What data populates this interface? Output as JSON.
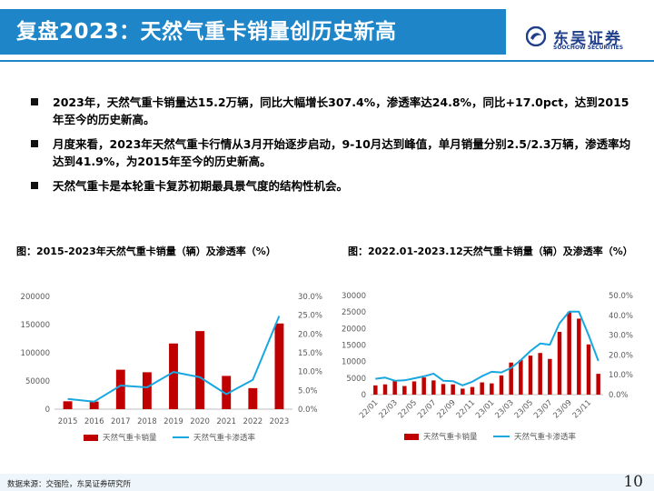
{
  "header": {
    "title": "复盘2023：天然气重卡销量创历史新高"
  },
  "logo": {
    "name_cn": "东吴证券",
    "name_en": "SOOCHOW SECURITIES"
  },
  "bullets": [
    "2023年，天然气重卡销量达15.2万辆，同比大幅增长307.4%，渗透率达24.8%，同比+17.0pct，达到2015年至今的历史新高。",
    "月度来看，2023年天然气重卡行情从3月开始逐步启动，9-10月达到峰值，单月销量分别2.5/2.3万辆，渗透率均达到41.9%，为2015年至今的历史新高。",
    "天然气重卡是本轮重卡复苏初期最具景气度的结构性机会。"
  ],
  "footer": {
    "source": "数据来源：交强险，东吴证券研究所",
    "page": "10"
  },
  "colors": {
    "accent": "#1e86c8",
    "bar": "#c00000",
    "line": "#19a7e0"
  },
  "chart_data": [
    {
      "type": "bar",
      "title": "图：2015-2023年天然气重卡销量（辆）及渗透率（%）",
      "categories": [
        "2015",
        "2016",
        "2017",
        "2018",
        "2019",
        "2020",
        "2021",
        "2022",
        "2023"
      ],
      "series": [
        {
          "name": "天然气重卡销量",
          "type": "bar",
          "axis": "left",
          "values": [
            14000,
            13500,
            70000,
            65500,
            116500,
            138500,
            59000,
            37300,
            152000
          ]
        },
        {
          "name": "天然气重卡渗透率",
          "type": "line",
          "axis": "right",
          "values": [
            2.7,
            2.0,
            6.3,
            5.8,
            9.9,
            8.5,
            4.0,
            7.8,
            24.8
          ]
        }
      ],
      "y_left": {
        "min": 0,
        "max": 200000,
        "ticks": [
          "0",
          "50000",
          "100000",
          "150000",
          "200000"
        ]
      },
      "y_right": {
        "min": 0,
        "max": 30,
        "ticks": [
          "0.0%",
          "5.0%",
          "10.0%",
          "15.0%",
          "20.0%",
          "25.0%",
          "30.0%"
        ]
      }
    },
    {
      "type": "bar",
      "title": "图：2022.01-2023.12天然气重卡销量（辆）及渗透率（%）",
      "categories": [
        "22/01",
        "22/02",
        "22/03",
        "22/04",
        "22/05",
        "22/06",
        "22/07",
        "22/08",
        "22/09",
        "22/10",
        "22/11",
        "22/12",
        "23/01",
        "23/02",
        "23/03",
        "23/04",
        "23/05",
        "23/06",
        "23/07",
        "23/08",
        "23/09",
        "23/10",
        "23/11",
        "23/12"
      ],
      "x_tick_labels": [
        "22/01",
        "22/03",
        "22/05",
        "22/07",
        "22/09",
        "22/11",
        "23/01",
        "23/03",
        "23/05",
        "23/07",
        "23/09",
        "23/11"
      ],
      "series": [
        {
          "name": "天然气重卡销量",
          "type": "bar",
          "axis": "left",
          "values": [
            2800,
            3100,
            4200,
            2600,
            4000,
            5200,
            4300,
            3200,
            3100,
            1800,
            2300,
            3700,
            3400,
            5800,
            9700,
            10500,
            11800,
            12600,
            10800,
            19000,
            25000,
            23000,
            15200,
            6300
          ]
        },
        {
          "name": "天然气重卡渗透率",
          "type": "line",
          "axis": "right",
          "values": [
            8.0,
            8.6,
            7.0,
            7.2,
            8.2,
            9.2,
            10.6,
            7.0,
            6.8,
            4.7,
            6.5,
            9.3,
            11.5,
            11.2,
            13.5,
            17.4,
            22.0,
            25.8,
            25.2,
            36.0,
            41.9,
            41.9,
            30.0,
            17.0
          ]
        }
      ],
      "y_left": {
        "min": 0,
        "max": 30000,
        "ticks": [
          "0",
          "5000",
          "10000",
          "15000",
          "20000",
          "25000",
          "30000"
        ]
      },
      "y_right": {
        "min": 0,
        "max": 50,
        "ticks": [
          "0.0%",
          "10.0%",
          "20.0%",
          "30.0%",
          "40.0%",
          "50.0%"
        ]
      }
    }
  ]
}
